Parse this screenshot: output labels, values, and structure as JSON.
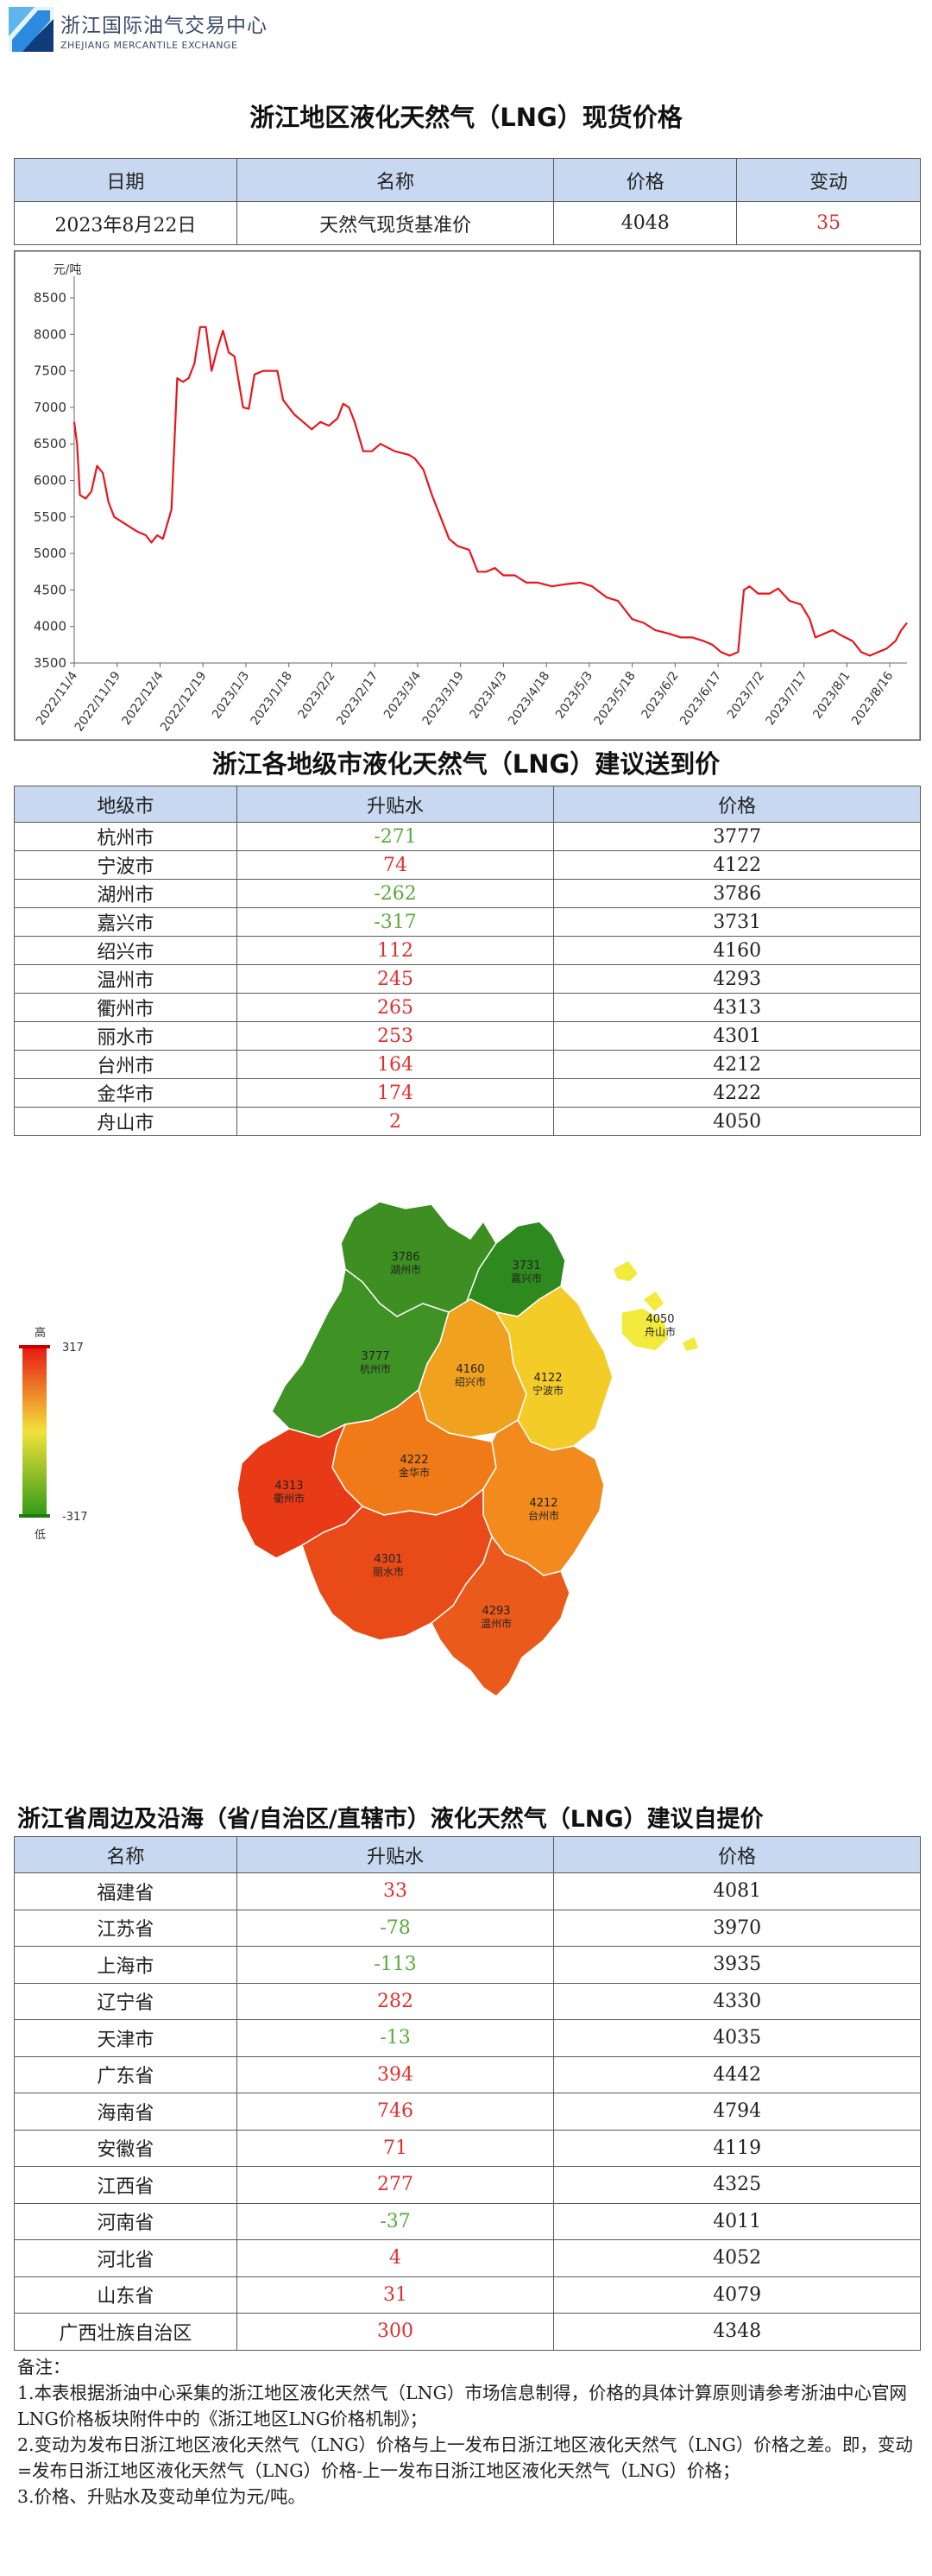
{
  "header": {
    "org_cn": "浙江国际油气交易中心",
    "org_en": "ZHEJIANG MERCANTILE EXCHANGE",
    "logo_icon": "zme-logo-icon"
  },
  "spot": {
    "title": "浙江地区液化天然气（LNG）现货价格",
    "headers": [
      "日期",
      "名称",
      "价格",
      "变动"
    ],
    "row": {
      "date": "2023年8月22日",
      "name": "天然气现货基准价",
      "price": "4048",
      "change": "35"
    }
  },
  "chart_data": {
    "type": "line",
    "ylabel": "元/吨",
    "ylim": [
      3500,
      8500
    ],
    "yticks": [
      3500,
      4000,
      4500,
      5000,
      5500,
      6000,
      6500,
      7000,
      7500,
      8000,
      8500
    ],
    "xticks": [
      "2022/11/4",
      "2022/11/19",
      "2022/12/4",
      "2022/12/19",
      "2023/1/3",
      "2023/1/18",
      "2023/2/2",
      "2023/2/17",
      "2023/3/4",
      "2023/3/19",
      "2023/4/3",
      "2023/4/18",
      "2023/5/3",
      "2023/5/18",
      "2023/6/2",
      "2023/6/17",
      "2023/7/2",
      "2023/7/17",
      "2023/8/1",
      "2023/8/16"
    ],
    "x_start": "2022/11/4",
    "x_end": "2023/8/22",
    "color": "#e8161d",
    "points": [
      [
        "2022/11/4",
        6800
      ],
      [
        "2022/11/5",
        6500
      ],
      [
        "2022/11/6",
        5800
      ],
      [
        "2022/11/8",
        5750
      ],
      [
        "2022/11/10",
        5850
      ],
      [
        "2022/11/12",
        6200
      ],
      [
        "2022/11/14",
        6100
      ],
      [
        "2022/11/16",
        5700
      ],
      [
        "2022/11/18",
        5500
      ],
      [
        "2022/11/22",
        5400
      ],
      [
        "2022/11/26",
        5300
      ],
      [
        "2022/11/29",
        5250
      ],
      [
        "2022/12/1",
        5150
      ],
      [
        "2022/12/3",
        5250
      ],
      [
        "2022/12/5",
        5200
      ],
      [
        "2022/12/8",
        5600
      ],
      [
        "2022/12/10",
        7400
      ],
      [
        "2022/12/12",
        7350
      ],
      [
        "2022/12/14",
        7400
      ],
      [
        "2022/12/16",
        7600
      ],
      [
        "2022/12/18",
        8100
      ],
      [
        "2022/12/20",
        8100
      ],
      [
        "2022/12/22",
        7500
      ],
      [
        "2022/12/24",
        7800
      ],
      [
        "2022/12/26",
        8050
      ],
      [
        "2022/12/28",
        7750
      ],
      [
        "2022/12/30",
        7700
      ],
      [
        "2023/1/2",
        7000
      ],
      [
        "2023/1/4",
        6980
      ],
      [
        "2023/1/6",
        7450
      ],
      [
        "2023/1/9",
        7500
      ],
      [
        "2023/1/14",
        7500
      ],
      [
        "2023/1/16",
        7100
      ],
      [
        "2023/1/18",
        7000
      ],
      [
        "2023/1/20",
        6900
      ],
      [
        "2023/1/23",
        6800
      ],
      [
        "2023/1/26",
        6700
      ],
      [
        "2023/1/29",
        6800
      ],
      [
        "2023/2/1",
        6750
      ],
      [
        "2023/2/4",
        6850
      ],
      [
        "2023/2/6",
        7050
      ],
      [
        "2023/2/8",
        7000
      ],
      [
        "2023/2/10",
        6800
      ],
      [
        "2023/2/13",
        6400
      ],
      [
        "2023/2/16",
        6400
      ],
      [
        "2023/2/19",
        6500
      ],
      [
        "2023/2/24",
        6400
      ],
      [
        "2023/3/1",
        6350
      ],
      [
        "2023/3/3",
        6300
      ],
      [
        "2023/3/6",
        6150
      ],
      [
        "2023/3/9",
        5800
      ],
      [
        "2023/3/12",
        5500
      ],
      [
        "2023/3/15",
        5200
      ],
      [
        "2023/3/18",
        5100
      ],
      [
        "2023/3/22",
        5050
      ],
      [
        "2023/3/25",
        4750
      ],
      [
        "2023/3/28",
        4750
      ],
      [
        "2023/3/31",
        4800
      ],
      [
        "2023/4/3",
        4700
      ],
      [
        "2023/4/7",
        4700
      ],
      [
        "2023/4/11",
        4600
      ],
      [
        "2023/4/15",
        4600
      ],
      [
        "2023/4/20",
        4550
      ],
      [
        "2023/4/25",
        4580
      ],
      [
        "2023/4/30",
        4600
      ],
      [
        "2023/5/4",
        4550
      ],
      [
        "2023/5/9",
        4400
      ],
      [
        "2023/5/13",
        4350
      ],
      [
        "2023/5/18",
        4100
      ],
      [
        "2023/5/22",
        4050
      ],
      [
        "2023/5/26",
        3950
      ],
      [
        "2023/5/31",
        3900
      ],
      [
        "2023/6/4",
        3850
      ],
      [
        "2023/6/8",
        3850
      ],
      [
        "2023/6/12",
        3800
      ],
      [
        "2023/6/15",
        3750
      ],
      [
        "2023/6/18",
        3650
      ],
      [
        "2023/6/21",
        3600
      ],
      [
        "2023/6/24",
        3650
      ],
      [
        "2023/6/26",
        4500
      ],
      [
        "2023/6/28",
        4550
      ],
      [
        "2023/7/1",
        4450
      ],
      [
        "2023/7/5",
        4450
      ],
      [
        "2023/7/8",
        4520
      ],
      [
        "2023/7/12",
        4350
      ],
      [
        "2023/7/16",
        4300
      ],
      [
        "2023/7/19",
        4100
      ],
      [
        "2023/7/21",
        3850
      ],
      [
        "2023/7/24",
        3900
      ],
      [
        "2023/7/27",
        3950
      ],
      [
        "2023/7/30",
        3880
      ],
      [
        "2023/8/3",
        3800
      ],
      [
        "2023/8/6",
        3650
      ],
      [
        "2023/8/9",
        3600
      ],
      [
        "2023/8/12",
        3650
      ],
      [
        "2023/8/15",
        3700
      ],
      [
        "2023/8/18",
        3800
      ],
      [
        "2023/8/20",
        3950
      ],
      [
        "2023/8/22",
        4050
      ]
    ]
  },
  "cities": {
    "title": "浙江各地级市液化天然气（LNG）建议送到价",
    "headers": [
      "地级市",
      "升贴水",
      "价格"
    ],
    "rows": [
      {
        "name": "杭州市",
        "diff": "-271",
        "price": "3777",
        "sign": "neg"
      },
      {
        "name": "宁波市",
        "diff": "74",
        "price": "4122",
        "sign": "pos"
      },
      {
        "name": "湖州市",
        "diff": "-262",
        "price": "3786",
        "sign": "neg"
      },
      {
        "name": "嘉兴市",
        "diff": "-317",
        "price": "3731",
        "sign": "neg"
      },
      {
        "name": "绍兴市",
        "diff": "112",
        "price": "4160",
        "sign": "pos"
      },
      {
        "name": "温州市",
        "diff": "245",
        "price": "4293",
        "sign": "pos"
      },
      {
        "name": "衢州市",
        "diff": "265",
        "price": "4313",
        "sign": "pos"
      },
      {
        "name": "丽水市",
        "diff": "253",
        "price": "4301",
        "sign": "pos"
      },
      {
        "name": "台州市",
        "diff": "164",
        "price": "4212",
        "sign": "pos"
      },
      {
        "name": "金华市",
        "diff": "174",
        "price": "4222",
        "sign": "pos"
      },
      {
        "name": "舟山市",
        "diff": "2",
        "price": "4050",
        "sign": "pos"
      }
    ]
  },
  "map": {
    "legend_high": "高",
    "legend_low": "低",
    "legend_max": "317",
    "legend_min": "-317",
    "regions": [
      {
        "name": "湖州市",
        "price": "3786",
        "color": "#3d8f22"
      },
      {
        "name": "嘉兴市",
        "price": "3731",
        "color": "#2e8a1e"
      },
      {
        "name": "舟山市",
        "price": "4050",
        "color": "#f2ea3c"
      },
      {
        "name": "杭州市",
        "price": "3777",
        "color": "#3f9224"
      },
      {
        "name": "绍兴市",
        "price": "4160",
        "color": "#f0a21e"
      },
      {
        "name": "宁波市",
        "price": "4122",
        "color": "#f4cc28"
      },
      {
        "name": "金华市",
        "price": "4222",
        "color": "#f07a18"
      },
      {
        "name": "衢州市",
        "price": "4313",
        "color": "#e83a16"
      },
      {
        "name": "台州市",
        "price": "4212",
        "color": "#f28a1e"
      },
      {
        "name": "丽水市",
        "price": "4301",
        "color": "#e84a18"
      },
      {
        "name": "温州市",
        "price": "4293",
        "color": "#ea5a1a"
      }
    ]
  },
  "provinces": {
    "title": "浙江省周边及沿海（省/自治区/直辖市）液化天然气（LNG）建议自提价",
    "headers": [
      "名称",
      "升贴水",
      "价格"
    ],
    "rows": [
      {
        "name": "福建省",
        "diff": "33",
        "price": "4081",
        "sign": "pos"
      },
      {
        "name": "江苏省",
        "diff": "-78",
        "price": "3970",
        "sign": "neg"
      },
      {
        "name": "上海市",
        "diff": "-113",
        "price": "3935",
        "sign": "neg"
      },
      {
        "name": "辽宁省",
        "diff": "282",
        "price": "4330",
        "sign": "pos"
      },
      {
        "name": "天津市",
        "diff": "-13",
        "price": "4035",
        "sign": "neg"
      },
      {
        "name": "广东省",
        "diff": "394",
        "price": "4442",
        "sign": "pos"
      },
      {
        "name": "海南省",
        "diff": "746",
        "price": "4794",
        "sign": "pos"
      },
      {
        "name": "安徽省",
        "diff": "71",
        "price": "4119",
        "sign": "pos"
      },
      {
        "name": "江西省",
        "diff": "277",
        "price": "4325",
        "sign": "pos"
      },
      {
        "name": "河南省",
        "diff": "-37",
        "price": "4011",
        "sign": "neg"
      },
      {
        "name": "河北省",
        "diff": "4",
        "price": "4052",
        "sign": "pos"
      },
      {
        "name": "山东省",
        "diff": "31",
        "price": "4079",
        "sign": "pos"
      },
      {
        "name": "广西壮族自治区",
        "diff": "300",
        "price": "4348",
        "sign": "pos"
      }
    ]
  },
  "notes": {
    "heading": "备注：",
    "items": [
      "1.本表根据浙油中心采集的浙江地区液化天然气（LNG）市场信息制得，价格的具体计算原则请参考浙油中心官网LNG价格板块附件中的《浙江地区LNG价格机制》；",
      "2.变动为发布日浙江地区液化天然气（LNG）价格与上一发布日浙江地区液化天然气（LNG）价格之差。即，变动=发布日浙江地区液化天然气（LNG）价格-上一发布日浙江地区液化天然气（LNG）价格；",
      "3.价格、升贴水及变动单位为元/吨。"
    ]
  }
}
